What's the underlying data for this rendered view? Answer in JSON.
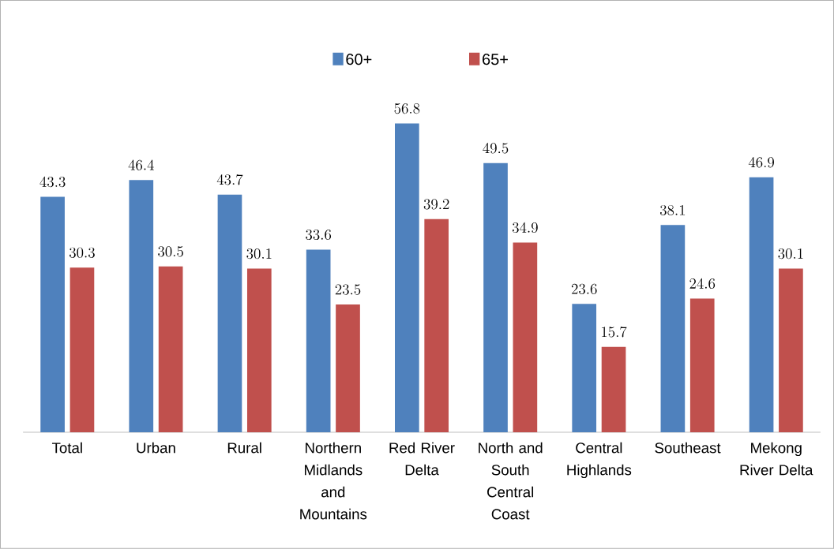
{
  "chart_data": {
    "type": "bar",
    "categories": [
      "Total",
      "Urban",
      "Rural",
      "Northern Midlands and Mountains",
      "Red River Delta",
      "North and South Central Coast",
      "Central Highlands",
      "Southeast",
      "Mekong River Delta"
    ],
    "series": [
      {
        "name": "60+",
        "color": "#4f81bd",
        "values": [
          43.3,
          46.4,
          43.7,
          33.6,
          56.8,
          49.5,
          23.6,
          38.1,
          46.9
        ]
      },
      {
        "name": "65+",
        "color": "#c0504d",
        "values": [
          30.3,
          30.5,
          30.1,
          23.5,
          39.2,
          34.9,
          15.7,
          24.6,
          30.1
        ]
      }
    ],
    "data_labels": true,
    "legend": "top"
  }
}
